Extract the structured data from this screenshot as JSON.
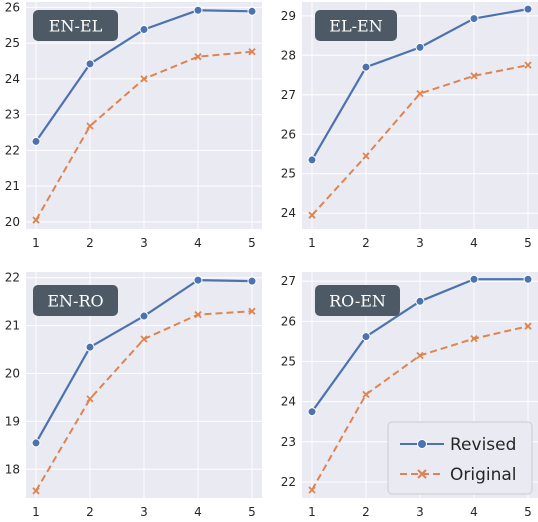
{
  "chart_data": [
    {
      "type": "line",
      "title": "EN-EL",
      "x": [
        1,
        2,
        3,
        4,
        5
      ],
      "series": [
        {
          "name": "Revised",
          "values": [
            22.25,
            24.42,
            25.38,
            25.92,
            25.89
          ]
        },
        {
          "name": "Original",
          "values": [
            20.05,
            22.68,
            24.0,
            24.62,
            24.76
          ]
        }
      ],
      "xticks": [
        "1",
        "2",
        "3",
        "4",
        "5"
      ],
      "yticks": [
        "20",
        "21",
        "22",
        "23",
        "24",
        "25",
        "26"
      ],
      "ylim": [
        19.8,
        26.15
      ],
      "grid": true
    },
    {
      "type": "line",
      "title": "EL-EN",
      "x": [
        1,
        2,
        3,
        4,
        5
      ],
      "series": [
        {
          "name": "Revised",
          "values": [
            25.35,
            27.7,
            28.2,
            28.93,
            29.17
          ]
        },
        {
          "name": "Original",
          "values": [
            23.95,
            25.45,
            27.03,
            27.48,
            27.75
          ]
        }
      ],
      "xticks": [
        "1",
        "2",
        "3",
        "4",
        "5"
      ],
      "yticks": [
        "24",
        "25",
        "26",
        "27",
        "28",
        "29"
      ],
      "ylim": [
        23.6,
        29.35
      ],
      "grid": true
    },
    {
      "type": "line",
      "title": "EN-RO",
      "x": [
        1,
        2,
        3,
        4,
        5
      ],
      "series": [
        {
          "name": "Revised",
          "values": [
            18.55,
            20.55,
            21.2,
            21.95,
            21.93
          ]
        },
        {
          "name": "Original",
          "values": [
            17.55,
            19.47,
            20.72,
            21.23,
            21.3
          ]
        }
      ],
      "xticks": [
        "1",
        "2",
        "3",
        "4",
        "5"
      ],
      "yticks": [
        "18",
        "19",
        "20",
        "21",
        "22"
      ],
      "ylim": [
        17.4,
        22.12
      ],
      "grid": true
    },
    {
      "type": "line",
      "title": "RO-EN",
      "x": [
        1,
        2,
        3,
        4,
        5
      ],
      "series": [
        {
          "name": "Revised",
          "values": [
            23.75,
            25.62,
            26.5,
            27.05,
            27.05
          ]
        },
        {
          "name": "Original",
          "values": [
            21.8,
            24.18,
            25.15,
            25.57,
            25.88
          ]
        }
      ],
      "xticks": [
        "1",
        "2",
        "3",
        "4",
        "5"
      ],
      "yticks": [
        "22",
        "23",
        "24",
        "25",
        "26",
        "27"
      ],
      "ylim": [
        21.6,
        27.23
      ],
      "grid": true,
      "legend": "bottom-right"
    }
  ],
  "legend": {
    "placement": "bottom-right of lower-right panel",
    "entries": [
      {
        "label": "Revised",
        "marker": "circle",
        "line": "solid",
        "color": "#4c72b0"
      },
      {
        "label": "Original",
        "marker": "x",
        "line": "dashed",
        "color": "#dd8452"
      }
    ]
  },
  "colors": {
    "revised": "#4c72b0",
    "original": "#dd8452",
    "panel_background": "#eaeaf2",
    "grid": "#ffffff",
    "title_box": "#4d5a65",
    "title_text": "#ffffff",
    "tick_text": "#262626"
  }
}
